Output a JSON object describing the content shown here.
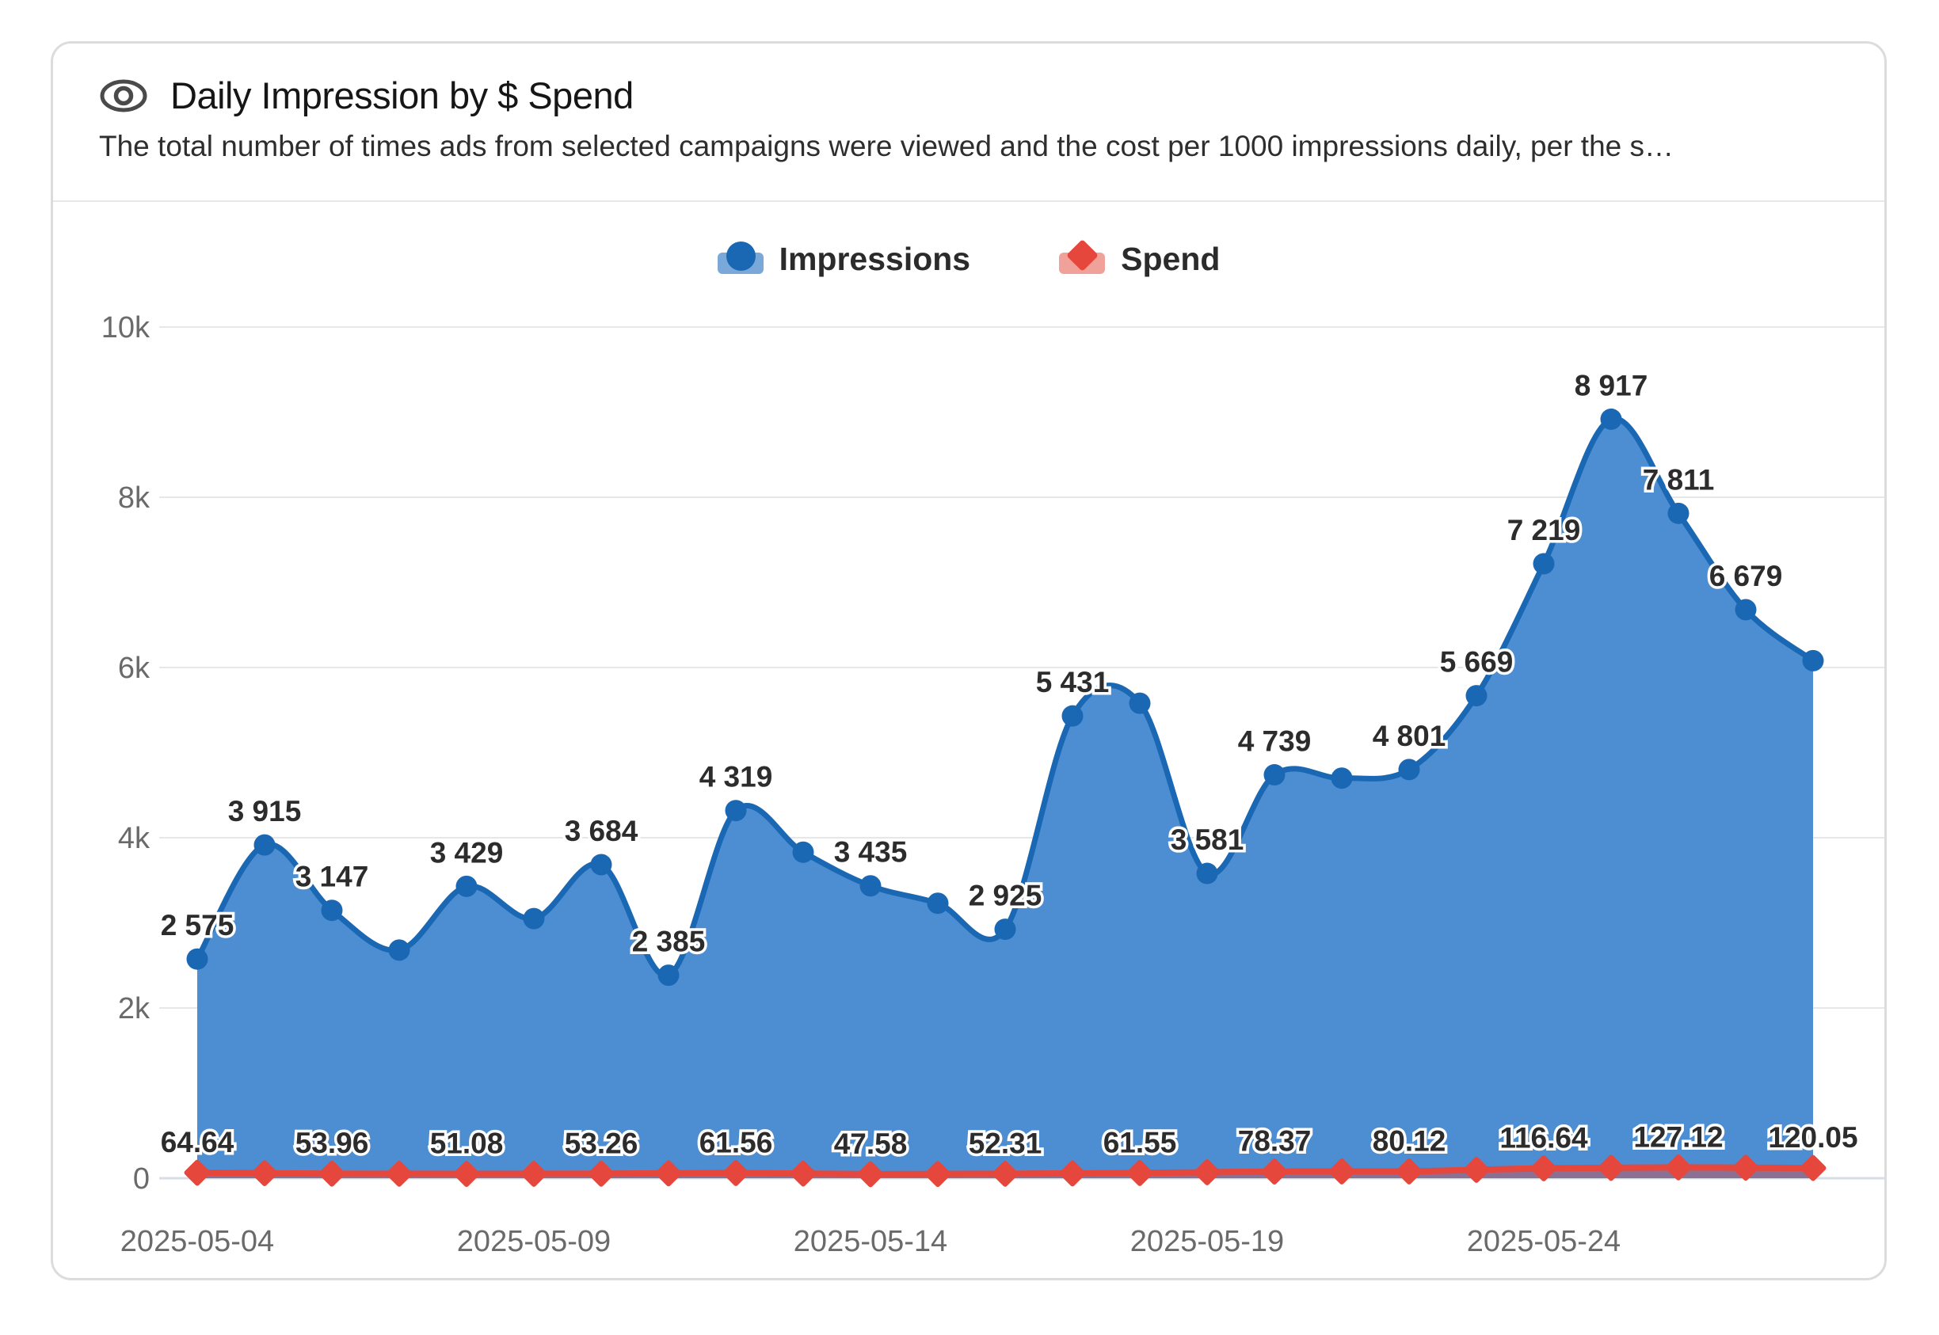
{
  "card": {
    "title": "Daily Impression by $ Spend",
    "subtitle": "The total number of times ads from selected campaigns were viewed and the cost per 1000 impressions daily, per the s…"
  },
  "legend": [
    {
      "label": "Impressions",
      "marker": "circle-on-area",
      "color": "#1a68b4"
    },
    {
      "label": "Spend",
      "marker": "diamond-on-area",
      "color": "#e5473c"
    }
  ],
  "chart_data": {
    "type": "area",
    "x": [
      "2025-05-04",
      "2025-05-05",
      "2025-05-06",
      "2025-05-07",
      "2025-05-08",
      "2025-05-09",
      "2025-05-10",
      "2025-05-11",
      "2025-05-12",
      "2025-05-13",
      "2025-05-14",
      "2025-05-15",
      "2025-05-16",
      "2025-05-17",
      "2025-05-18",
      "2025-05-19",
      "2025-05-20",
      "2025-05-21",
      "2025-05-22",
      "2025-05-23",
      "2025-05-24",
      "2025-05-25",
      "2025-05-26",
      "2025-05-27",
      "2025-05-28"
    ],
    "x_axis_tick_labels": [
      "2025-05-04",
      "2025-05-09",
      "2025-05-14",
      "2025-05-19",
      "2025-05-24"
    ],
    "y_axis": {
      "ticks": [
        0,
        2000,
        4000,
        6000,
        8000,
        10000
      ],
      "tick_labels": [
        "0",
        "2k",
        "4k",
        "6k",
        "8k",
        "10k"
      ],
      "max": 10000
    },
    "grid": true,
    "legend_position": "top-center",
    "series": [
      {
        "name": "Impressions",
        "style": "smooth-area-line",
        "marker": "circle",
        "line_color": "#1a68b4",
        "fill_color": "#4d8ed2",
        "values": [
          2575,
          3915,
          3147,
          2680,
          3429,
          3050,
          3684,
          2385,
          4319,
          3830,
          3435,
          3230,
          2925,
          5431,
          5580,
          3581,
          4739,
          4700,
          4801,
          5669,
          7219,
          8917,
          7811,
          6679,
          6080
        ],
        "labeled": [
          true,
          true,
          true,
          false,
          true,
          false,
          true,
          true,
          true,
          false,
          true,
          false,
          true,
          true,
          false,
          true,
          true,
          false,
          true,
          true,
          true,
          true,
          true,
          true,
          false
        ],
        "label_format": "thousands-space"
      },
      {
        "name": "Spend",
        "style": "smooth-area-line",
        "marker": "diamond",
        "line_color": "#e5473c",
        "fill_color": "rgba(229,71,60,0.42)",
        "values": [
          64.64,
          59.3,
          53.96,
          52.5,
          51.08,
          52.2,
          53.26,
          57.4,
          61.56,
          54.6,
          47.58,
          49.9,
          52.31,
          56.9,
          61.55,
          70.0,
          78.37,
          79.2,
          80.12,
          98.4,
          116.64,
          121.9,
          127.12,
          123.6,
          120.05
        ],
        "labeled": [
          true,
          false,
          true,
          false,
          true,
          false,
          true,
          false,
          true,
          false,
          true,
          false,
          true,
          false,
          true,
          false,
          true,
          false,
          true,
          false,
          true,
          false,
          true,
          false,
          true
        ],
        "label_format": "two-decimals"
      }
    ]
  },
  "colors": {
    "page_background": "#ffffff",
    "card_border": "#dcdcdc",
    "gridline": "#e7e7e7",
    "axis_line": "#d8dee8",
    "axis_label": "#6a6a6a",
    "data_label": "#2c2c2c",
    "title": "#161616",
    "subtitle": "#2e2e2e"
  }
}
